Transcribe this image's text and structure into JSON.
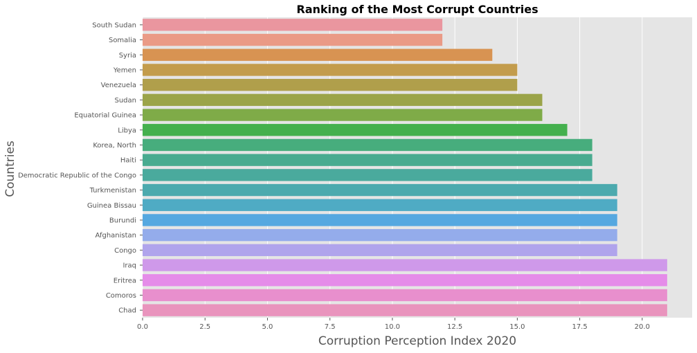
{
  "chart_data": {
    "type": "bar",
    "orientation": "horizontal",
    "title": "Ranking of the Most Corrupt Countries",
    "xlabel": "Corruption Perception Index 2020",
    "ylabel": "Countries",
    "xlim": [
      0,
      22
    ],
    "xticks": [
      "0.0",
      "2.5",
      "5.0",
      "7.5",
      "10.0",
      "12.5",
      "15.0",
      "17.5",
      "20.0"
    ],
    "grid": true,
    "style": "ggplot",
    "categories": [
      "South Sudan",
      "Somalia",
      "Syria",
      "Yemen",
      "Venezuela",
      "Sudan",
      "Equatorial Guinea",
      "Libya",
      "Korea, North",
      "Haiti",
      "Democratic Republic of the Congo",
      "Turkmenistan",
      "Guinea Bissau",
      "Burundi",
      "Afghanistan",
      "Congo",
      "Iraq",
      "Eritrea",
      "Comoros",
      "Chad"
    ],
    "values": [
      12,
      12,
      14,
      15,
      15,
      16,
      16,
      17,
      18,
      18,
      18,
      19,
      19,
      19,
      19,
      19,
      21,
      21,
      21,
      21
    ],
    "colors": [
      "#ea969f",
      "#ea9a86",
      "#d89352",
      "#c39c4c",
      "#b09f4b",
      "#9ba449",
      "#7fab48",
      "#45b04e",
      "#47ad7d",
      "#49ab90",
      "#4aaa9d",
      "#4caaae",
      "#4fabc4",
      "#55a8e0",
      "#94aceb",
      "#b0a4ec",
      "#cf99ea",
      "#e58ce9",
      "#e88fcd",
      "#e994bd"
    ]
  }
}
